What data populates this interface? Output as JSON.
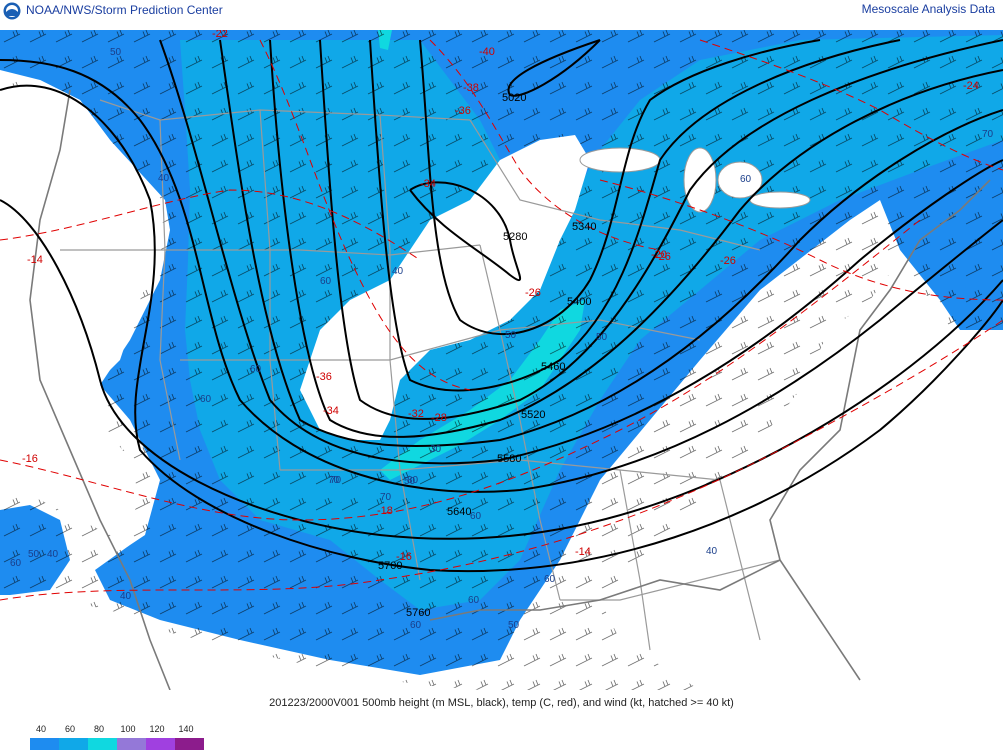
{
  "header": {
    "agency": "NOAA/NWS/Storm Prediction Center",
    "product": "Mesoscale Analysis Data"
  },
  "caption": "201223/2000V001 500mb height (m MSL, black), temp (C, red), and wind (kt, hatched >= 40 kt)",
  "legend": {
    "items": [
      {
        "label": "40",
        "color": "#1e8cf0"
      },
      {
        "label": "60",
        "color": "#10a8e8"
      },
      {
        "label": "80",
        "color": "#10d8e0"
      },
      {
        "label": "100",
        "color": "#9478d8"
      },
      {
        "label": "120",
        "color": "#a040e0"
      },
      {
        "label": "140",
        "color": "#8c1c8c"
      }
    ]
  },
  "map": {
    "height_labels": [
      "5020",
      "5280",
      "5340",
      "5400",
      "5460",
      "5520",
      "5580",
      "5640",
      "5700",
      "5760"
    ],
    "temp_labels": [
      "-22",
      "-40",
      "-38",
      "-36",
      "-34",
      "-14",
      "-36",
      "-34",
      "-32",
      "-28",
      "-26",
      "-26",
      "-20",
      "-26",
      "-24",
      "-16",
      "-18",
      "-16",
      "-14"
    ],
    "speed_labels": [
      "50",
      "40",
      "60",
      "40",
      "60",
      "70",
      "80",
      "50",
      "60",
      "50",
      "60",
      "40",
      "30",
      "70",
      "60",
      "50",
      "40",
      "60",
      "50",
      "40",
      "70",
      "70",
      "60",
      "60",
      "50",
      "60"
    ]
  }
}
